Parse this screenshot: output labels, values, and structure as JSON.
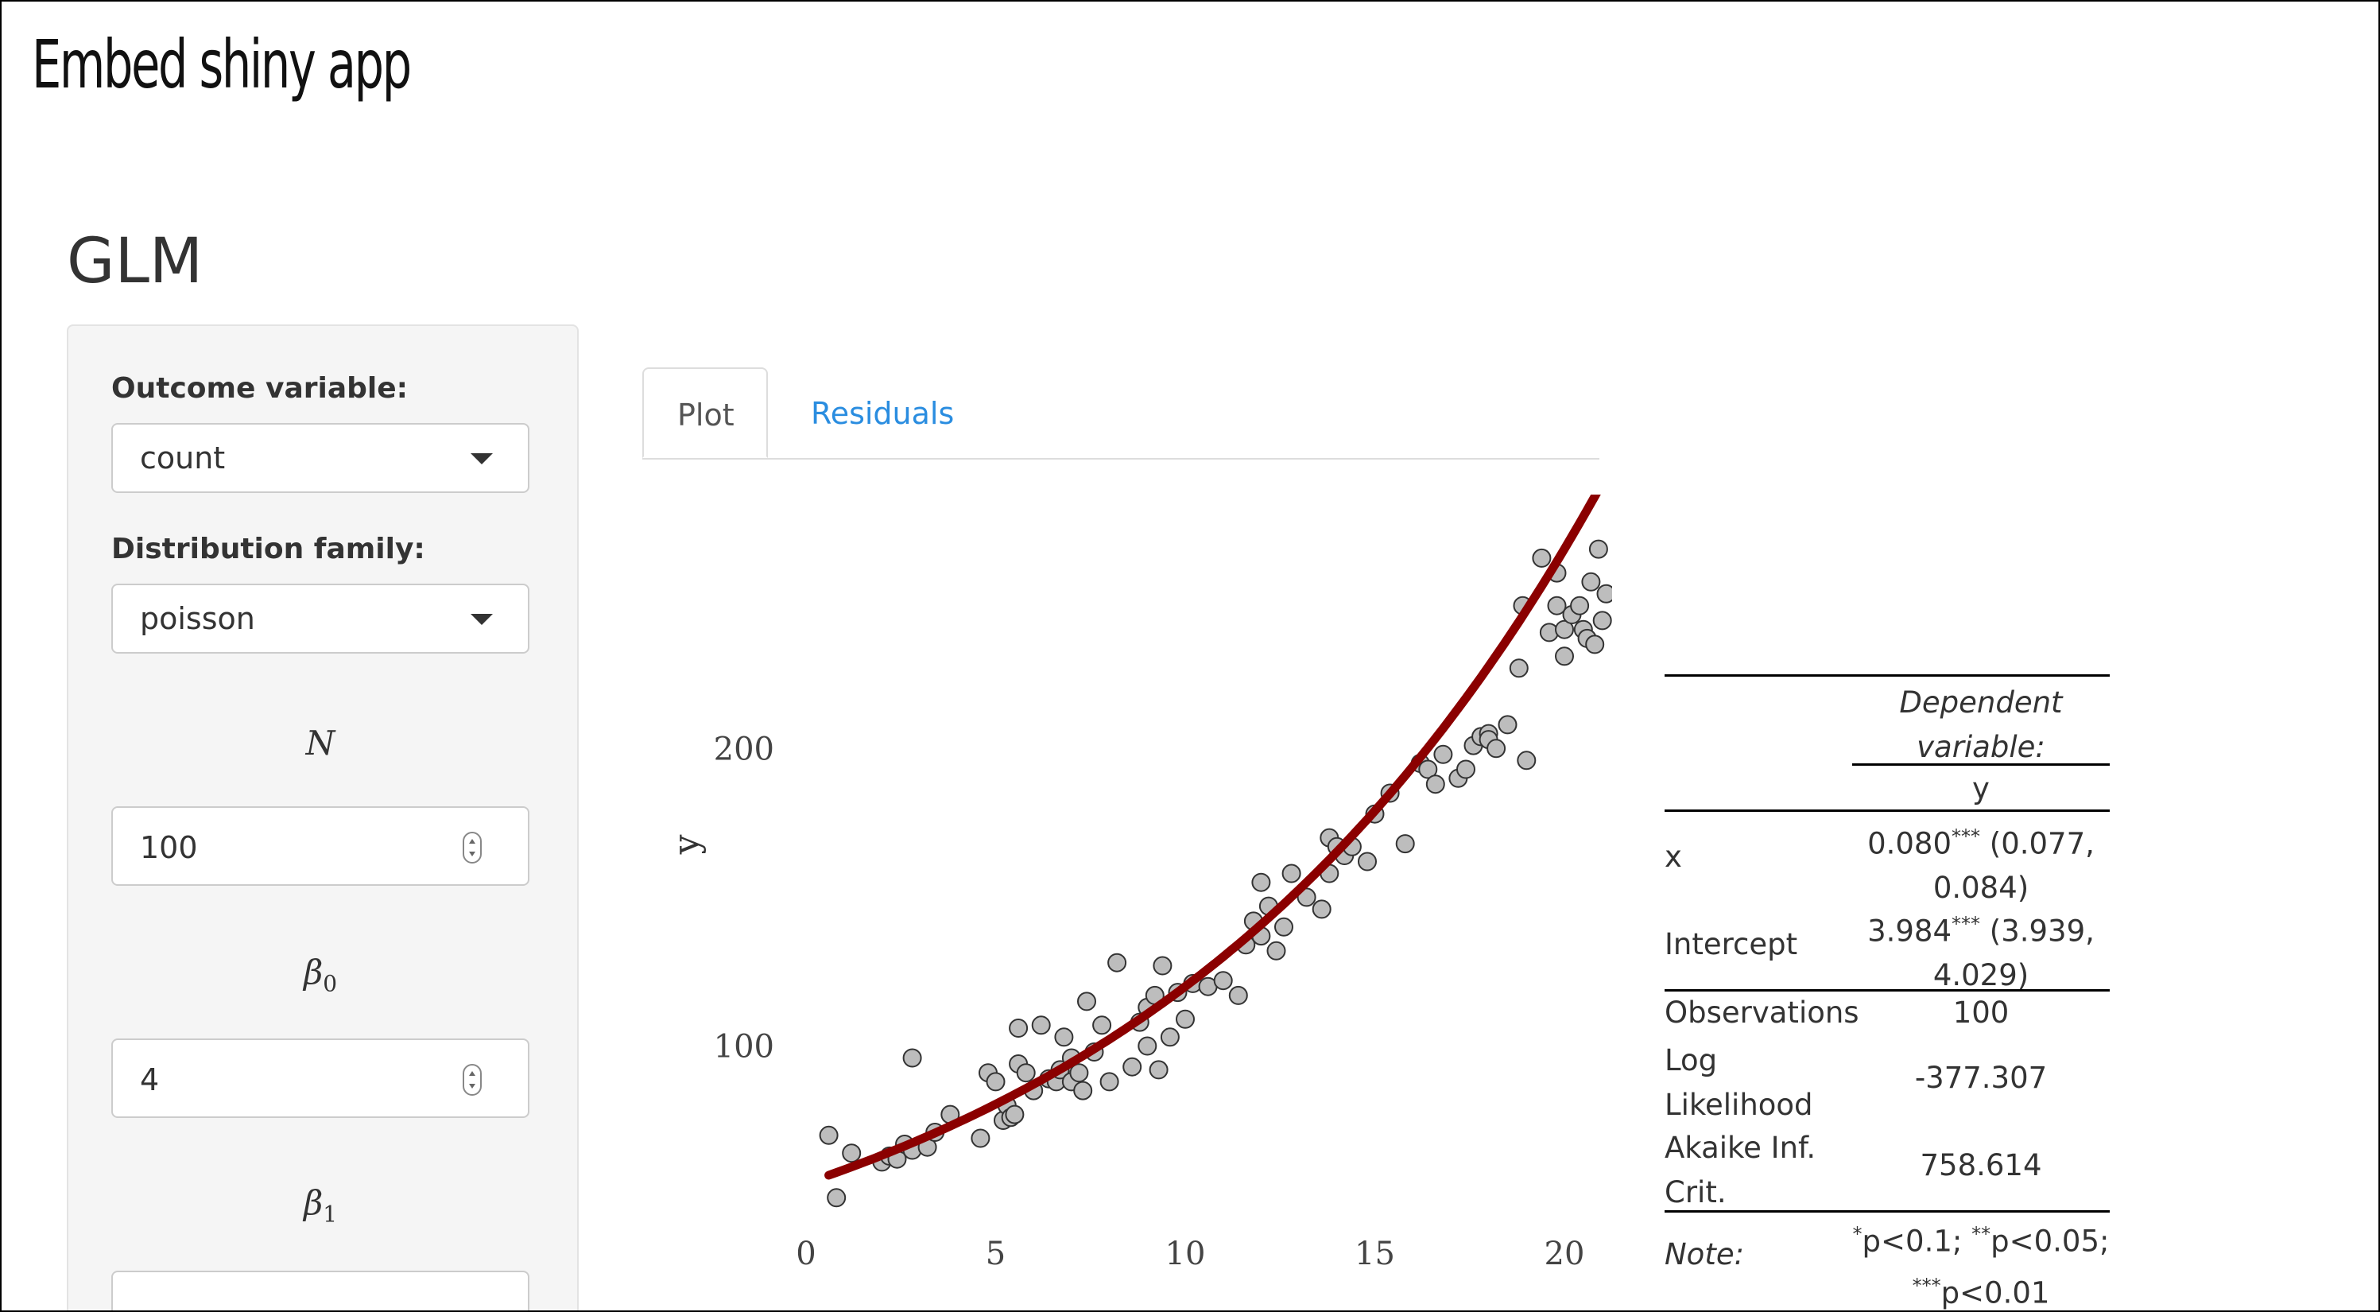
{
  "deck_title": "Embed shiny app",
  "app_title": "GLM",
  "sidebar": {
    "outcome_label": "Outcome variable:",
    "outcome_value": "count",
    "family_label": "Distribution family:",
    "family_value": "poisson",
    "n_label": "N",
    "n_value": "100",
    "beta0_symbol": "β",
    "beta0_sub": "0",
    "beta0_value": "4",
    "beta1_symbol": "β",
    "beta1_sub": "1"
  },
  "tabs": [
    {
      "label": "Plot",
      "active": true
    },
    {
      "label": "Residuals",
      "active": false
    }
  ],
  "chart_data": {
    "type": "scatter",
    "xlabel": "",
    "ylabel": "y",
    "xlim": [
      0,
      20
    ],
    "ylim": [
      40,
      280
    ],
    "x_ticks": [
      0,
      5,
      10,
      15,
      20
    ],
    "y_ticks": [
      100,
      200
    ],
    "grid": false,
    "points": [
      [
        0.6,
        70
      ],
      [
        0.8,
        49
      ],
      [
        1.2,
        64
      ],
      [
        2,
        61
      ],
      [
        2.2,
        63
      ],
      [
        2.4,
        62
      ],
      [
        2.6,
        67
      ],
      [
        2.8,
        65
      ],
      [
        2.8,
        96
      ],
      [
        3.2,
        66
      ],
      [
        3.4,
        71
      ],
      [
        3.8,
        77
      ],
      [
        4.6,
        69
      ],
      [
        4.8,
        91
      ],
      [
        5,
        88
      ],
      [
        5.2,
        75
      ],
      [
        5.3,
        80
      ],
      [
        5.4,
        76
      ],
      [
        5.5,
        77
      ],
      [
        5.6,
        94
      ],
      [
        5.6,
        106
      ],
      [
        5.8,
        91
      ],
      [
        6,
        85
      ],
      [
        6.2,
        107
      ],
      [
        6.4,
        89
      ],
      [
        6.6,
        88
      ],
      [
        6.7,
        92
      ],
      [
        6.8,
        103
      ],
      [
        7,
        96
      ],
      [
        7,
        88
      ],
      [
        7.2,
        91
      ],
      [
        7.3,
        85
      ],
      [
        7.4,
        115
      ],
      [
        7.6,
        98
      ],
      [
        7.8,
        107
      ],
      [
        8,
        88
      ],
      [
        8.2,
        128
      ],
      [
        8.6,
        93
      ],
      [
        8.8,
        108
      ],
      [
        9,
        100
      ],
      [
        9,
        113
      ],
      [
        9.2,
        117
      ],
      [
        9.3,
        92
      ],
      [
        9.4,
        127
      ],
      [
        9.6,
        103
      ],
      [
        9.8,
        118
      ],
      [
        10,
        109
      ],
      [
        10.2,
        121
      ],
      [
        10.6,
        120
      ],
      [
        11,
        122
      ],
      [
        11.4,
        117
      ],
      [
        11.6,
        134
      ],
      [
        11.8,
        142
      ],
      [
        12,
        137
      ],
      [
        12,
        155
      ],
      [
        12.2,
        147
      ],
      [
        12.4,
        132
      ],
      [
        12.6,
        140
      ],
      [
        12.8,
        158
      ],
      [
        13.2,
        150
      ],
      [
        13.6,
        146
      ],
      [
        13.8,
        158
      ],
      [
        13.8,
        170
      ],
      [
        14,
        167
      ],
      [
        14.2,
        164
      ],
      [
        14.4,
        167
      ],
      [
        14.8,
        162
      ],
      [
        15,
        178
      ],
      [
        15.4,
        185
      ],
      [
        15.8,
        168
      ],
      [
        16.2,
        195
      ],
      [
        16.4,
        193
      ],
      [
        16.6,
        188
      ],
      [
        16.8,
        198
      ],
      [
        17.2,
        190
      ],
      [
        17.4,
        193
      ],
      [
        17.6,
        201
      ],
      [
        17.8,
        204
      ],
      [
        18,
        205
      ],
      [
        18,
        203
      ],
      [
        18.2,
        200
      ],
      [
        18.5,
        208
      ],
      [
        18.8,
        227
      ],
      [
        18.9,
        248
      ],
      [
        19,
        196
      ],
      [
        19.4,
        264
      ],
      [
        19.6,
        239
      ],
      [
        19.8,
        259
      ],
      [
        19.8,
        248
      ],
      [
        20,
        231
      ],
      [
        20,
        240
      ],
      [
        20.2,
        245
      ],
      [
        20.4,
        248
      ],
      [
        20.5,
        240
      ],
      [
        20.6,
        237
      ],
      [
        20.8,
        235
      ],
      [
        21,
        243
      ],
      [
        20.7,
        256
      ],
      [
        20.9,
        267
      ],
      [
        21.1,
        252
      ]
    ],
    "fit": {
      "intercept": 3.984,
      "slope": 0.08,
      "link": "log"
    }
  },
  "regression_table": {
    "header_line1": "Dependent",
    "header_line2": "variable:",
    "dep_var": "y",
    "rows": [
      {
        "name": "x",
        "line1": "0.080",
        "stars": "***",
        "line1_rest": " (0.077,",
        "line2": "0.084)"
      },
      {
        "name": "Intercept",
        "line1": "3.984",
        "stars": "***",
        "line1_rest": " (3.939,",
        "line2": "4.029)"
      }
    ],
    "stats": [
      {
        "name_lines": [
          "Observations"
        ],
        "value": "100"
      },
      {
        "name_lines": [
          "Log",
          "Likelihood"
        ],
        "value": "-377.307"
      },
      {
        "name_lines": [
          "Akaike Inf.",
          "Crit."
        ],
        "value": "758.614"
      }
    ],
    "note_label": "Note:",
    "note_line1_a": "*",
    "note_line1_b": "p<0.1; ",
    "note_line1_c": "**",
    "note_line1_d": "p<0.05;",
    "note_line2_a": "***",
    "note_line2_b": "p<0.01"
  }
}
